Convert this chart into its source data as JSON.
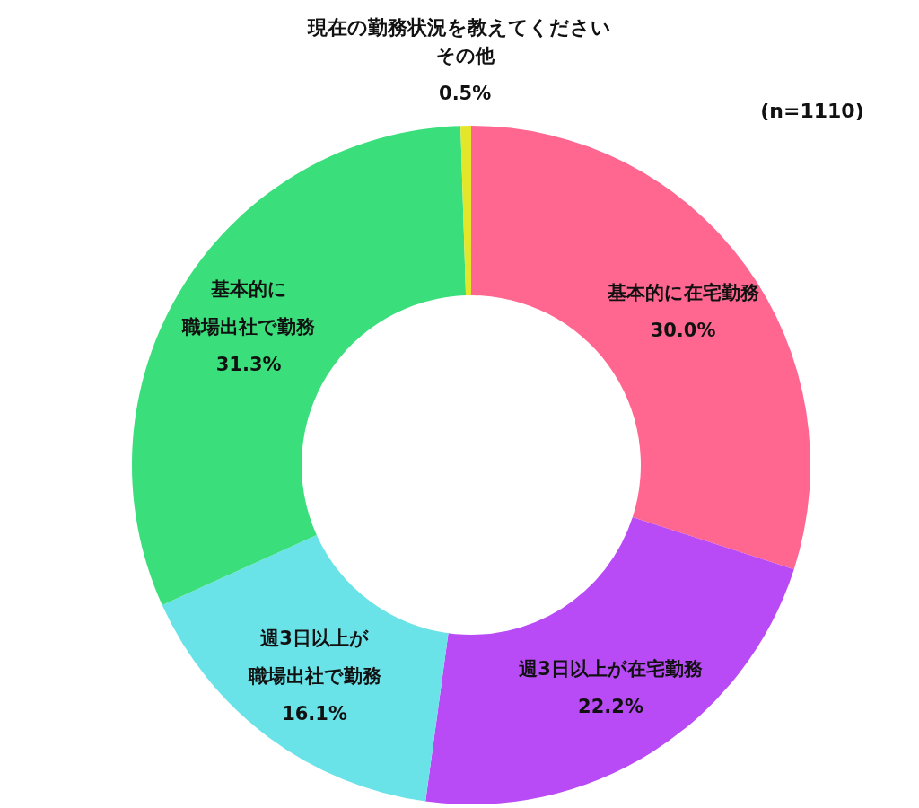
{
  "chart_data": {
    "type": "donut",
    "title": "現在の勤務状況を教えてください",
    "categories": [
      "基本的に在宅勤務",
      "週3日以上が在宅勤務",
      "週3日以上が職場出社で勤務",
      "基本的に職場出社で勤務",
      "その他"
    ],
    "values": [
      30.0,
      22.2,
      16.1,
      31.3,
      0.5
    ],
    "value_labels": [
      "30.0%",
      "22.2%",
      "16.1%",
      "31.3%",
      "0.5%"
    ],
    "colors": [
      "#ff6690",
      "#b84bf5",
      "#6ae3e8",
      "#3adf7c",
      "#e4e62a"
    ],
    "annotations": [
      "(n=1110)"
    ]
  }
}
